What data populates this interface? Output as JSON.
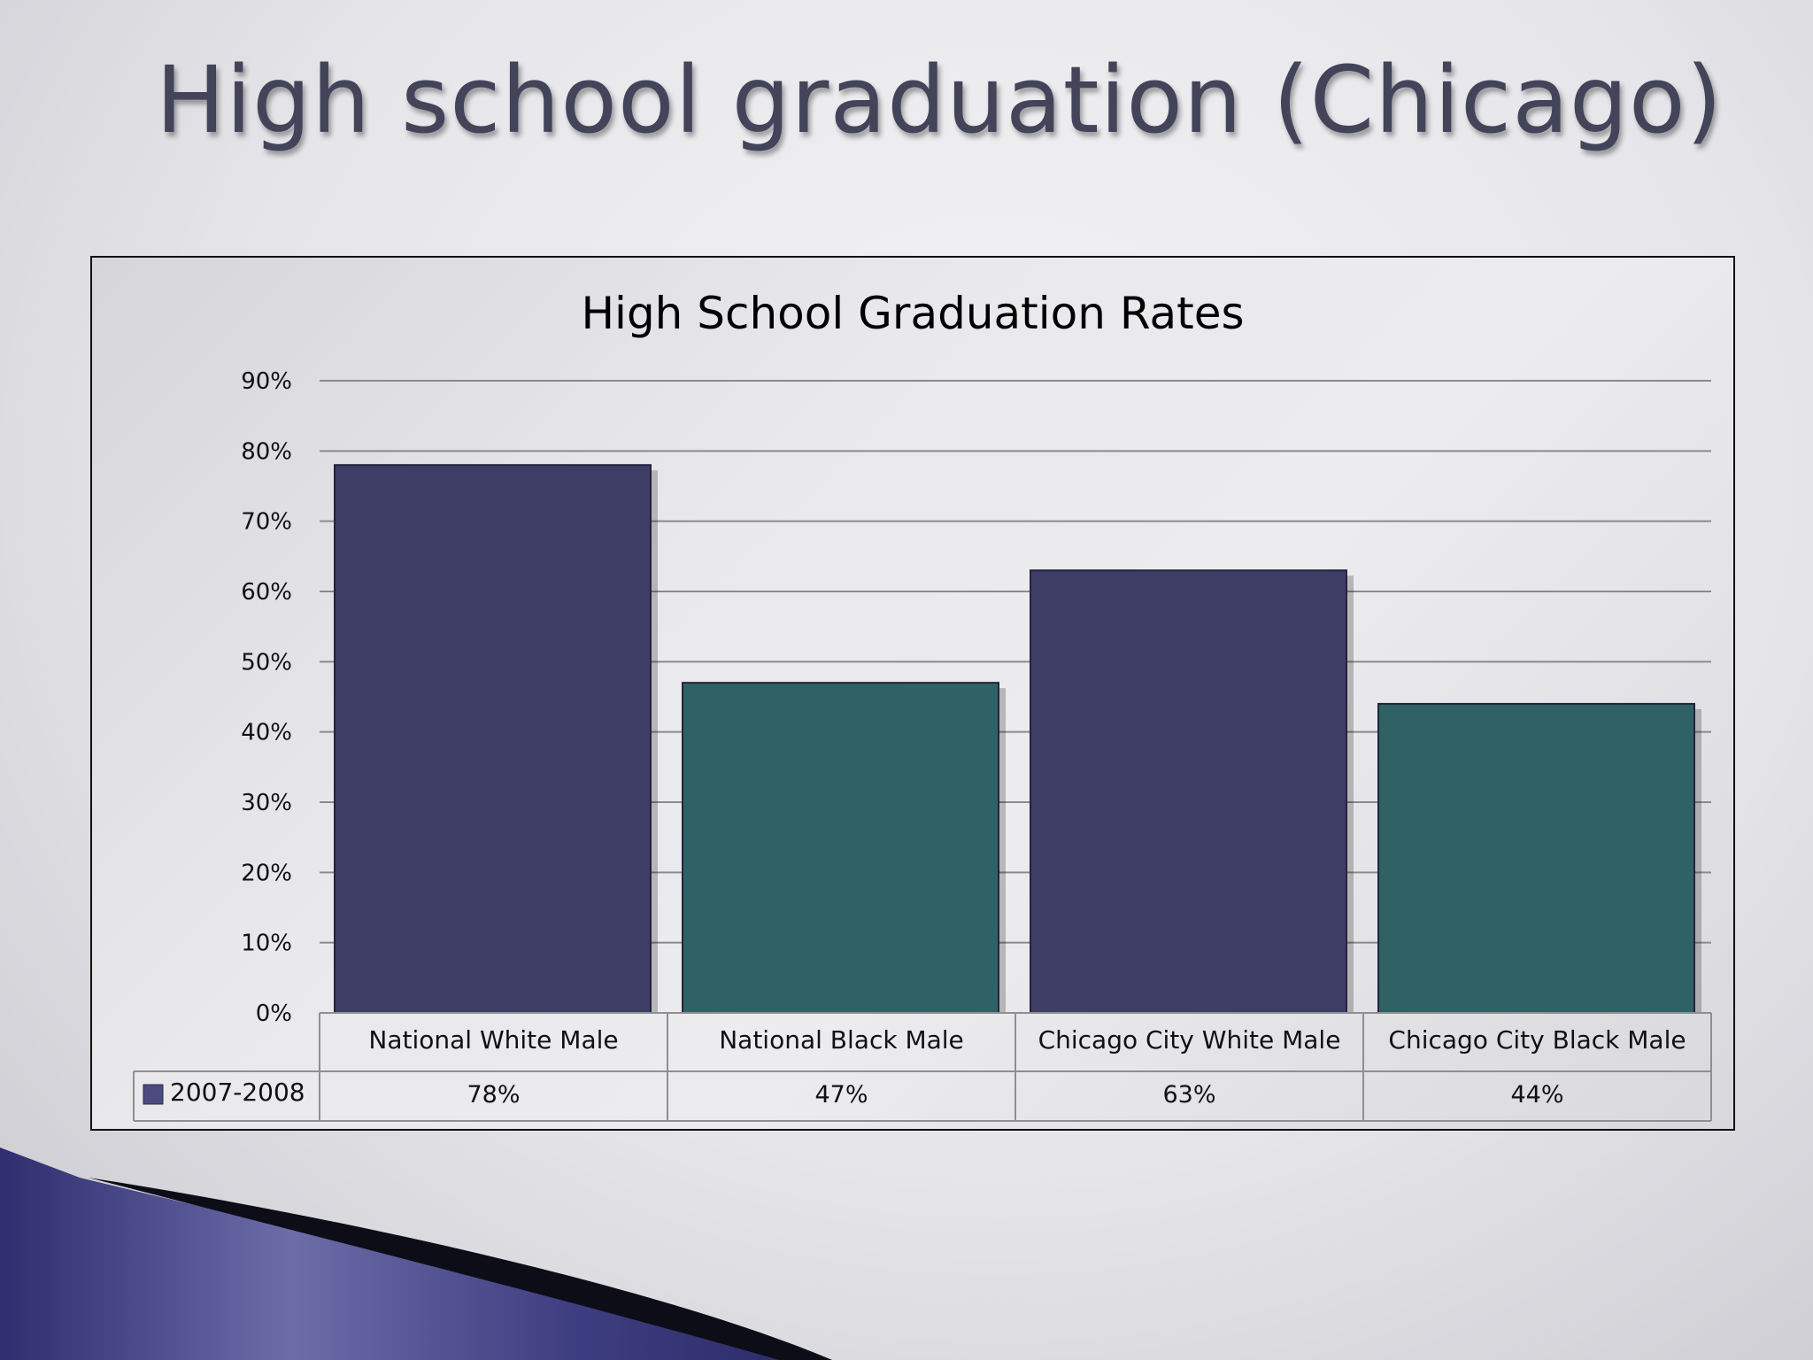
{
  "slide": {
    "title": "High school graduation (Chicago)"
  },
  "colors": {
    "white_male_bar": "#3e3d66",
    "black_male_bar": "#2f6265",
    "legend_swatch": "#4c4b7e",
    "accent_swoosh": "#3a3a78"
  },
  "chart_data": {
    "type": "bar",
    "title": "High School Graduation Rates",
    "categories": [
      "National White Male",
      "National Black Male",
      "Chicago City White Male",
      "Chicago City Black Male"
    ],
    "series": [
      {
        "name": "2007-2008",
        "values": [
          78,
          47,
          63,
          44
        ]
      }
    ],
    "value_labels": [
      "78%",
      "47%",
      "63%",
      "44%"
    ],
    "ylim": [
      0,
      90
    ],
    "yticks": [
      0,
      10,
      20,
      30,
      40,
      50,
      60,
      70,
      80,
      90
    ],
    "ytick_labels": [
      "0%",
      "10%",
      "20%",
      "30%",
      "40%",
      "50%",
      "60%",
      "70%",
      "80%",
      "90%"
    ],
    "grid": true,
    "data_table": true,
    "xlabel": "",
    "ylabel": ""
  }
}
